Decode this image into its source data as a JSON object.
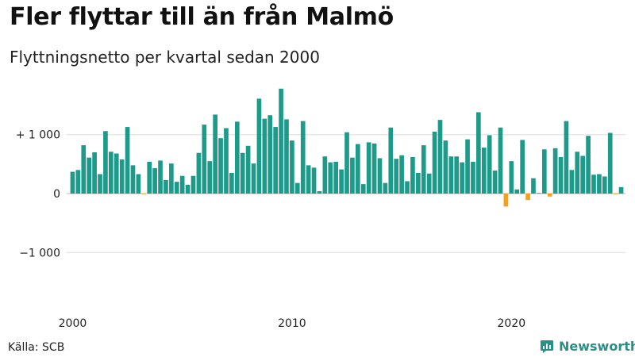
{
  "title": "Fler flyttar till än från Malmö",
  "subtitle": "Flyttningsnetto per kvartal sedan 2000",
  "source": "Källa: SCB",
  "brand": "Newsworthy",
  "colors": {
    "positive": "#1d9a8a",
    "negative": "#f5a016",
    "grid": "#dddddd",
    "brand": "#2a8f86"
  },
  "chart_data": {
    "type": "bar",
    "title": "Fler flyttar till än från Malmö",
    "subtitle": "Flyttningsnetto per kvartal sedan 2000",
    "x_start": "2000 Q1",
    "x_ticks": [
      {
        "label": "2000",
        "index": 0
      },
      {
        "label": "2010",
        "index": 40
      },
      {
        "label": "2020",
        "index": 80
      }
    ],
    "y_ticks": [
      {
        "value": 1000,
        "label": "+ 1 000"
      },
      {
        "value": 0,
        "label": "0"
      },
      {
        "value": -1000,
        "label": "−1 000"
      }
    ],
    "ylim": [
      -1800,
      1900
    ],
    "grid": true,
    "legend": "none",
    "values": [
      370,
      400,
      820,
      610,
      700,
      330,
      1060,
      710,
      680,
      580,
      1130,
      480,
      330,
      -10,
      540,
      430,
      560,
      230,
      510,
      200,
      300,
      150,
      300,
      690,
      1170,
      550,
      1340,
      940,
      1110,
      350,
      1220,
      690,
      810,
      510,
      1610,
      1270,
      1330,
      1130,
      1780,
      1260,
      900,
      180,
      1230,
      480,
      440,
      40,
      630,
      530,
      540,
      410,
      1040,
      610,
      840,
      160,
      870,
      850,
      600,
      180,
      1120,
      590,
      650,
      210,
      620,
      350,
      820,
      340,
      1050,
      1250,
      900,
      630,
      630,
      530,
      920,
      540,
      1380,
      780,
      990,
      390,
      1120,
      -220,
      550,
      70,
      910,
      -110,
      260,
      10,
      750,
      -50,
      770,
      620,
      1230,
      400,
      710,
      640,
      980,
      320,
      330,
      290,
      1030,
      -10,
      110
    ]
  }
}
